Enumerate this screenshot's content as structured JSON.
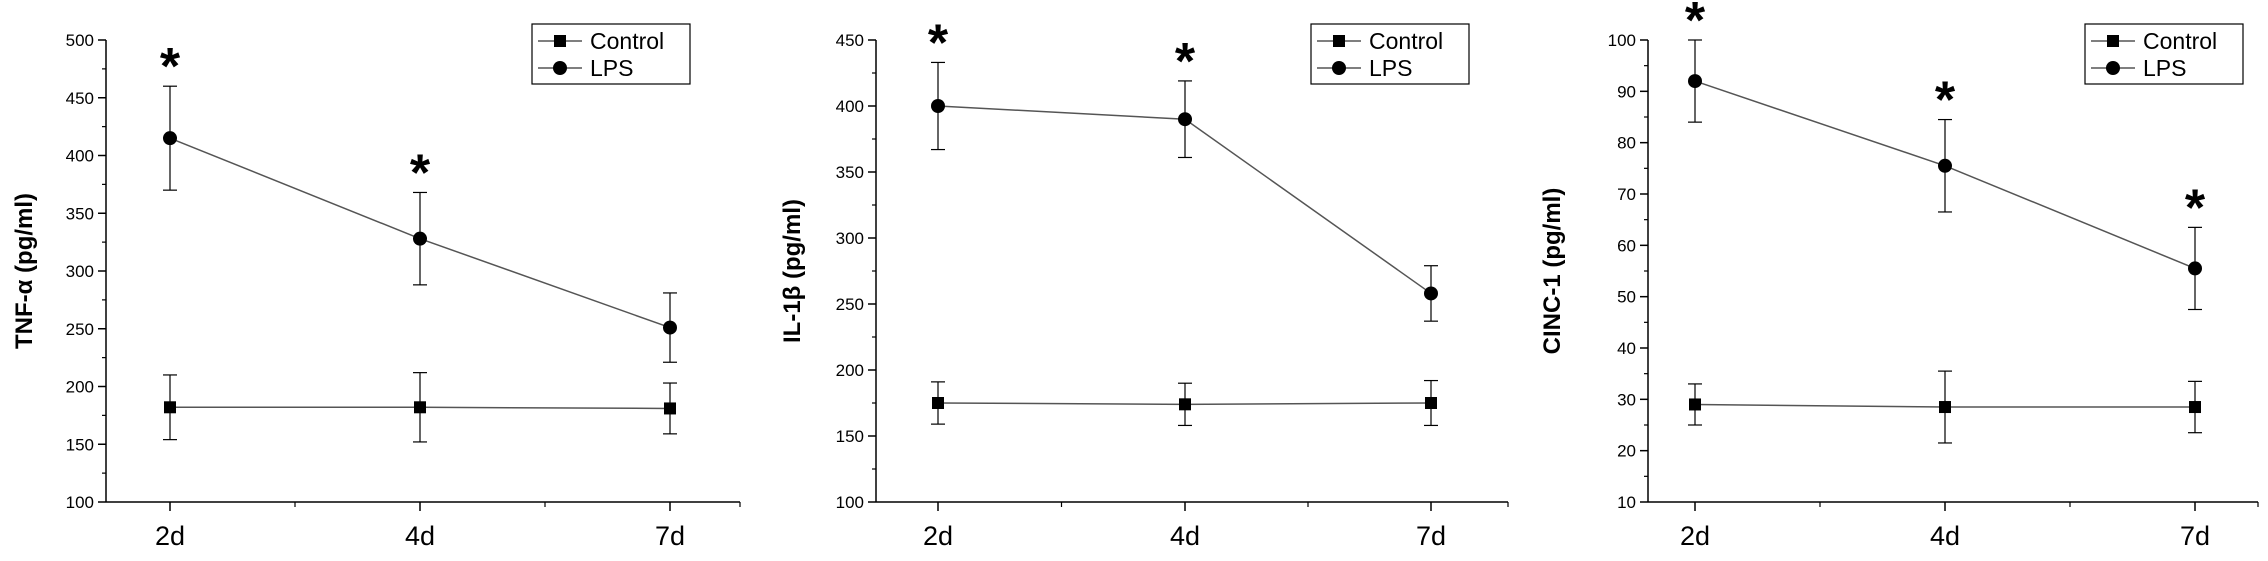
{
  "chart_data": [
    {
      "type": "line",
      "categories": [
        "2d",
        "4d",
        "7d"
      ],
      "ylabel": "TNF-α (pg/ml)",
      "ylim": [
        100,
        500
      ],
      "yticks": [
        100,
        150,
        200,
        250,
        300,
        350,
        400,
        450,
        500
      ],
      "legend_position": "top-right",
      "series": [
        {
          "name": "Control",
          "marker": "square",
          "values": [
            182,
            182,
            181
          ],
          "errors": [
            28,
            30,
            22
          ]
        },
        {
          "name": "LPS",
          "marker": "circle",
          "values": [
            415,
            328,
            251
          ],
          "errors": [
            45,
            40,
            30
          ]
        }
      ],
      "annotations": [
        {
          "category": "2d",
          "text": "*"
        },
        {
          "category": "4d",
          "text": "*"
        }
      ]
    },
    {
      "type": "line",
      "categories": [
        "2d",
        "4d",
        "7d"
      ],
      "ylabel": "IL-1β (pg/ml)",
      "ylim": [
        100,
        450
      ],
      "yticks": [
        100,
        150,
        200,
        250,
        300,
        350,
        400,
        450
      ],
      "legend_position": "top-right",
      "series": [
        {
          "name": "Control",
          "marker": "square",
          "values": [
            175,
            174,
            175
          ],
          "errors": [
            16,
            16,
            17
          ]
        },
        {
          "name": "LPS",
          "marker": "circle",
          "values": [
            400,
            390,
            258
          ],
          "errors": [
            33,
            29,
            21
          ]
        }
      ],
      "annotations": [
        {
          "category": "2d",
          "text": "*"
        },
        {
          "category": "4d",
          "text": "*"
        }
      ]
    },
    {
      "type": "line",
      "categories": [
        "2d",
        "4d",
        "7d"
      ],
      "ylabel": "CINC-1 (pg/ml)",
      "ylim": [
        10,
        100
      ],
      "yticks": [
        10,
        20,
        30,
        40,
        50,
        60,
        70,
        80,
        90,
        100
      ],
      "legend_position": "top-right",
      "series": [
        {
          "name": "Control",
          "marker": "square",
          "values": [
            29,
            28.5,
            28.5
          ],
          "errors": [
            4,
            7,
            5
          ]
        },
        {
          "name": "LPS",
          "marker": "circle",
          "values": [
            92,
            75.5,
            55.5
          ],
          "errors": [
            8,
            9,
            8
          ]
        }
      ],
      "annotations": [
        {
          "category": "2d",
          "text": "*"
        },
        {
          "category": "4d",
          "text": "*"
        },
        {
          "category": "7d",
          "text": "*"
        }
      ]
    }
  ]
}
